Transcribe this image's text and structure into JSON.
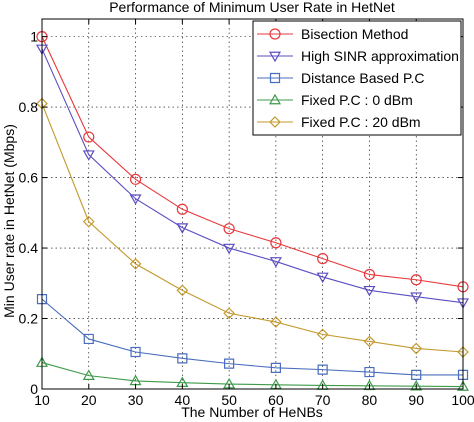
{
  "chart_data": {
    "type": "line",
    "title": "Performance of Minimum User Rate in HetNet",
    "xlabel": "The Number of HeNBs",
    "ylabel": "Min User rate in HetNet (Mbps)",
    "xlim": [
      10,
      100
    ],
    "ylim": [
      0,
      1.05
    ],
    "x": [
      10,
      20,
      30,
      40,
      50,
      60,
      70,
      80,
      90,
      100
    ],
    "xticks": [
      "10",
      "20",
      "30",
      "40",
      "50",
      "60",
      "70",
      "80",
      "90",
      "100"
    ],
    "yticks": [
      "0",
      "0.2",
      "0.4",
      "0.6",
      "0.8",
      "1"
    ],
    "grid": true,
    "legend_position": "top-right",
    "series": [
      {
        "name": "Bisection Method",
        "color": "#e8383b",
        "marker": "circle",
        "values": [
          1.0,
          0.715,
          0.595,
          0.51,
          0.455,
          0.415,
          0.37,
          0.325,
          0.31,
          0.29
        ]
      },
      {
        "name": "High SINR approximation",
        "color": "#5b4fc1",
        "marker": "triangle-down",
        "values": [
          0.965,
          0.665,
          0.54,
          0.458,
          0.4,
          0.362,
          0.318,
          0.28,
          0.262,
          0.245
        ]
      },
      {
        "name": "Distance Based P.C",
        "color": "#4a6dbd",
        "marker": "square",
        "values": [
          0.255,
          0.142,
          0.105,
          0.087,
          0.072,
          0.06,
          0.055,
          0.048,
          0.04,
          0.04
        ]
      },
      {
        "name": "Fixed P.C : 0 dBm",
        "color": "#3e9a4a",
        "marker": "triangle-up",
        "values": [
          0.075,
          0.038,
          0.023,
          0.018,
          0.014,
          0.012,
          0.01,
          0.009,
          0.008,
          0.007
        ]
      },
      {
        "name": "Fixed P.C : 20 dBm",
        "color": "#c39a2e",
        "marker": "diamond",
        "values": [
          0.81,
          0.475,
          0.355,
          0.28,
          0.215,
          0.19,
          0.155,
          0.135,
          0.115,
          0.105
        ]
      }
    ]
  }
}
